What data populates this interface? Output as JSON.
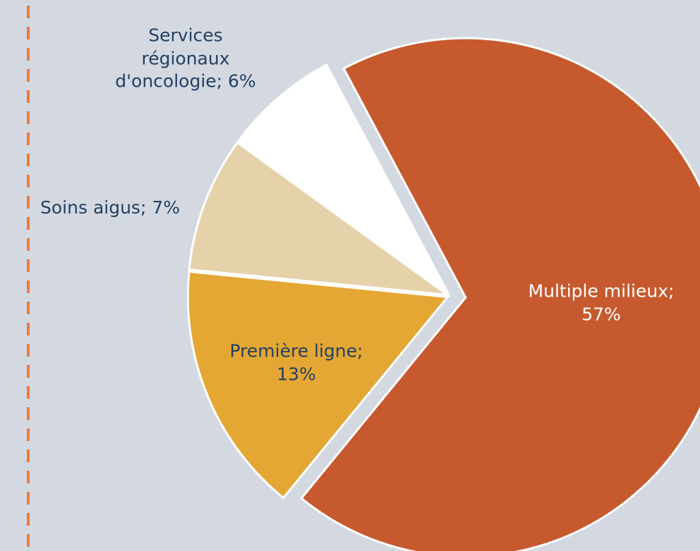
{
  "chart_data": {
    "type": "pie",
    "categories": [
      "Multiple milieux; 57%",
      "Première ligne; 13%",
      "Soins aigus; 7%",
      "Services régionaux d'oncologie; 6%"
    ],
    "values": [
      57,
      13,
      7,
      6
    ],
    "colors": [
      "#c65a2e",
      "#e4a733",
      "#e6d2aa",
      "#ffffff"
    ],
    "label_colors": [
      "#ffffff",
      "#233f63",
      "#233f63",
      "#233f63"
    ]
  }
}
